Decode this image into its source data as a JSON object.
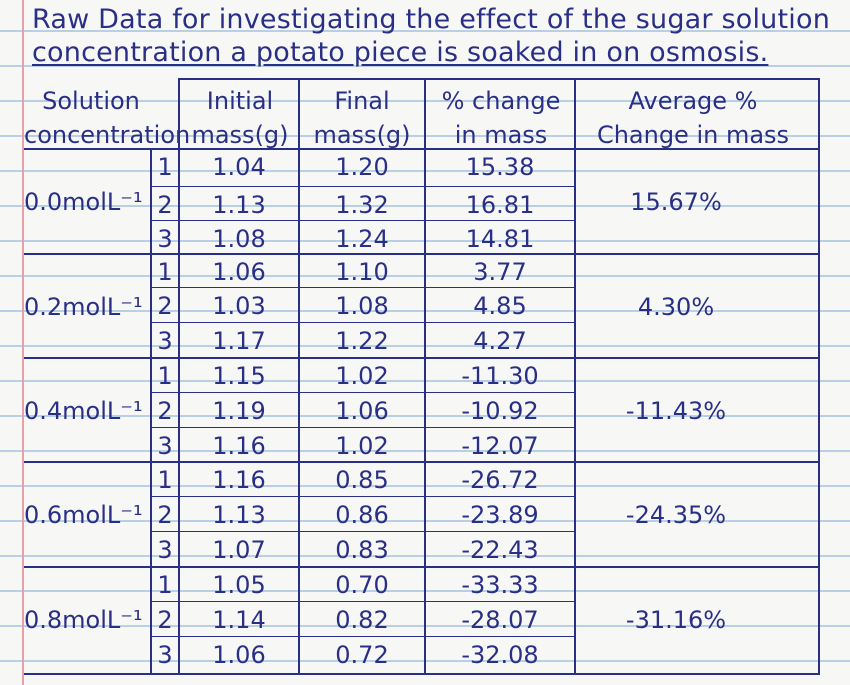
{
  "title": {
    "line1": "Raw Data for investigating the effect of the sugar solution",
    "line2": "concentration a potato piece is soaked in on osmosis."
  },
  "headers": {
    "concentration_l1": "Solution",
    "concentration_l2": "concentration",
    "initial_l1": "Initial",
    "initial_l2": "mass(g)",
    "final_l1": "Final",
    "final_l2": "mass(g)",
    "change_l1": "% change",
    "change_l2": "in mass",
    "average_l1": "Average %",
    "average_l2": "Change in mass"
  },
  "groups": [
    {
      "concentration": "0.0molL⁻¹",
      "average": "15.67%",
      "rows": [
        {
          "trial": "1",
          "initial": "1.04",
          "final": "1.20",
          "change": "15.38"
        },
        {
          "trial": "2",
          "initial": "1.13",
          "final": "1.32",
          "change": "16.81"
        },
        {
          "trial": "3",
          "initial": "1.08",
          "final": "1.24",
          "change": "14.81"
        }
      ]
    },
    {
      "concentration": "0.2molL⁻¹",
      "average": "4.30%",
      "rows": [
        {
          "trial": "1",
          "initial": "1.06",
          "final": "1.10",
          "change": "3.77"
        },
        {
          "trial": "2",
          "initial": "1.03",
          "final": "1.08",
          "change": "4.85"
        },
        {
          "trial": "3",
          "initial": "1.17",
          "final": "1.22",
          "change": "4.27"
        }
      ]
    },
    {
      "concentration": "0.4molL⁻¹",
      "average": "-11.43%",
      "rows": [
        {
          "trial": "1",
          "initial": "1.15",
          "final": "1.02",
          "change": "-11.30"
        },
        {
          "trial": "2",
          "initial": "1.19",
          "final": "1.06",
          "change": "-10.92"
        },
        {
          "trial": "3",
          "initial": "1.16",
          "final": "1.02",
          "change": "-12.07"
        }
      ]
    },
    {
      "concentration": "0.6molL⁻¹",
      "average": "-24.35%",
      "rows": [
        {
          "trial": "1",
          "initial": "1.16",
          "final": "0.85",
          "change": "-26.72"
        },
        {
          "trial": "2",
          "initial": "1.13",
          "final": "0.86",
          "change": "-23.89"
        },
        {
          "trial": "3",
          "initial": "1.07",
          "final": "0.83",
          "change": "-22.43"
        }
      ]
    },
    {
      "concentration": "0.8molL⁻¹",
      "average": "-31.16%",
      "rows": [
        {
          "trial": "1",
          "initial": "1.05",
          "final": "0.70",
          "change": "-33.33"
        },
        {
          "trial": "2",
          "initial": "1.14",
          "final": "0.82",
          "change": "-28.07"
        },
        {
          "trial": "3",
          "initial": "1.06",
          "final": "0.72",
          "change": "-32.08"
        }
      ]
    }
  ],
  "colors": {
    "ink": "#2a2f86",
    "paper": "#f7f8f6",
    "rule": "#b9cfe6",
    "margin": "#e6a0a6"
  }
}
